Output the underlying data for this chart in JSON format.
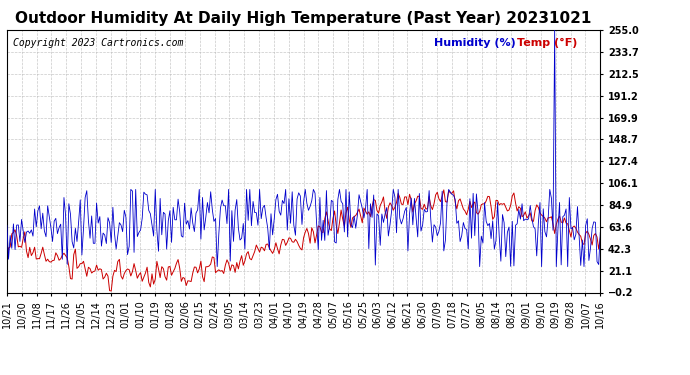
{
  "title": "Outdoor Humidity At Daily High Temperature (Past Year) 20231021",
  "copyright": "Copyright 2023 Cartronics.com",
  "legend_humidity": "Humidity (%)",
  "legend_temp": "Temp (°F)",
  "humidity_color": "#0000CC",
  "temp_color": "#CC0000",
  "background_color": "#FFFFFF",
  "grid_color": "#BBBBBB",
  "yticks": [
    -0.2,
    21.1,
    42.3,
    63.6,
    84.9,
    106.1,
    127.4,
    148.7,
    169.9,
    191.2,
    212.5,
    233.7,
    255.0
  ],
  "ytick_labels": [
    "-0.2",
    "21.1",
    "42.3",
    "63.6",
    "84.9",
    "106.1",
    "127.4",
    "148.7",
    "169.9",
    "191.2",
    "212.5",
    "233.7",
    "255.0"
  ],
  "xtick_labels": [
    "10/21",
    "10/30",
    "11/08",
    "11/17",
    "11/26",
    "12/05",
    "12/14",
    "12/23",
    "01/01",
    "01/10",
    "01/19",
    "01/28",
    "02/06",
    "02/15",
    "02/24",
    "03/05",
    "03/14",
    "03/23",
    "04/01",
    "04/10",
    "04/19",
    "04/28",
    "05/07",
    "05/16",
    "05/25",
    "06/03",
    "06/12",
    "06/21",
    "06/30",
    "07/09",
    "07/18",
    "07/27",
    "08/05",
    "08/14",
    "08/23",
    "09/01",
    "09/10",
    "09/19",
    "09/28",
    "10/07",
    "10/16"
  ],
  "ymin": -0.2,
  "ymax": 255.0,
  "title_fontsize": 11,
  "copyright_fontsize": 7,
  "axis_fontsize": 7,
  "legend_fontsize": 8,
  "spike_index": 336
}
